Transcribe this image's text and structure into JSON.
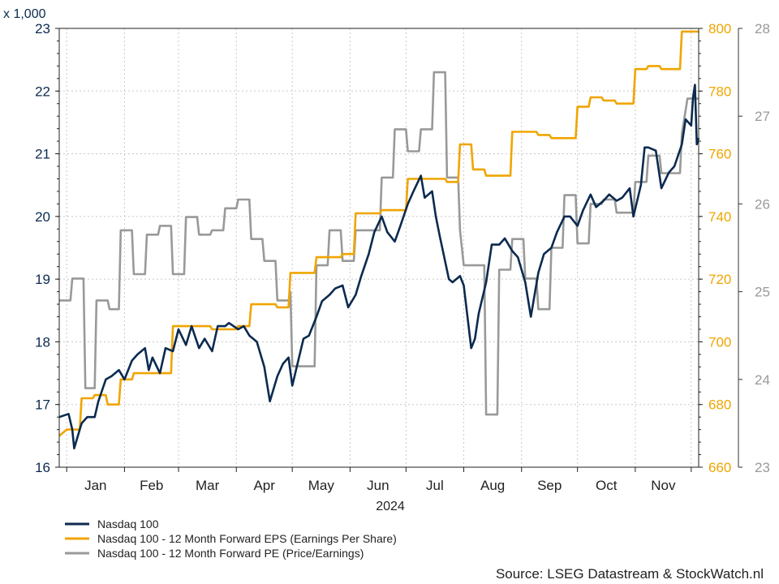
{
  "chart_data": {
    "type": "line",
    "unit_label": "x 1,000",
    "x_axis": {
      "year_label": "2024",
      "months": [
        "Jan",
        "Feb",
        "Mar",
        "Apr",
        "May",
        "Jun",
        "Jul",
        "Aug",
        "Sep",
        "Oct",
        "Nov"
      ],
      "range": [
        "2023-12-28",
        "2024-12-05"
      ]
    },
    "axes": {
      "left": {
        "min": 16,
        "max": 23,
        "step": 1,
        "color": "#0b2a4f",
        "series": "Nasdaq 100"
      },
      "right1": {
        "min": 660,
        "max": 800,
        "step": 20,
        "color": "#f0a500",
        "series": "Nasdaq 100 - 12 Month Forward EPS (Earnings Per Share)"
      },
      "right2": {
        "min": 23,
        "max": 28,
        "step": 1,
        "color": "#999999",
        "series": "Nasdaq 100 - 12 Month Forward PE (Price/Earnings)"
      }
    },
    "grid": true,
    "legend_position": "bottom-left",
    "source": "Source: LSEG Datastream & StockWatch.nl",
    "series": [
      {
        "name": "Nasdaq 100",
        "axis": "left",
        "color": "#0b2a4f",
        "points": [
          [
            "2023-12-28",
            16.8
          ],
          [
            "2024-01-02",
            16.85
          ],
          [
            "2024-01-04",
            16.6
          ],
          [
            "2024-01-05",
            16.3
          ],
          [
            "2024-01-09",
            16.7
          ],
          [
            "2024-01-12",
            16.8
          ],
          [
            "2024-01-16",
            16.8
          ],
          [
            "2024-01-18",
            17.05
          ],
          [
            "2024-01-22",
            17.4
          ],
          [
            "2024-01-25",
            17.45
          ],
          [
            "2024-01-29",
            17.55
          ],
          [
            "2024-02-01",
            17.4
          ],
          [
            "2024-02-05",
            17.7
          ],
          [
            "2024-02-08",
            17.8
          ],
          [
            "2024-02-12",
            17.9
          ],
          [
            "2024-02-14",
            17.55
          ],
          [
            "2024-02-16",
            17.75
          ],
          [
            "2024-02-20",
            17.5
          ],
          [
            "2024-02-23",
            17.9
          ],
          [
            "2024-02-27",
            17.85
          ],
          [
            "2024-03-01",
            18.2
          ],
          [
            "2024-03-05",
            17.95
          ],
          [
            "2024-03-08",
            18.25
          ],
          [
            "2024-03-12",
            17.9
          ],
          [
            "2024-03-15",
            18.05
          ],
          [
            "2024-03-19",
            17.85
          ],
          [
            "2024-03-22",
            18.25
          ],
          [
            "2024-03-26",
            18.25
          ],
          [
            "2024-03-28",
            18.3
          ],
          [
            "2024-04-02",
            18.2
          ],
          [
            "2024-04-05",
            18.25
          ],
          [
            "2024-04-08",
            18.1
          ],
          [
            "2024-04-12",
            18.0
          ],
          [
            "2024-04-16",
            17.6
          ],
          [
            "2024-04-19",
            17.05
          ],
          [
            "2024-04-23",
            17.45
          ],
          [
            "2024-04-26",
            17.65
          ],
          [
            "2024-04-29",
            17.75
          ],
          [
            "2024-05-01",
            17.3
          ],
          [
            "2024-05-03",
            17.55
          ],
          [
            "2024-05-07",
            18.05
          ],
          [
            "2024-05-10",
            18.1
          ],
          [
            "2024-05-14",
            18.4
          ],
          [
            "2024-05-17",
            18.65
          ],
          [
            "2024-05-21",
            18.75
          ],
          [
            "2024-05-24",
            18.85
          ],
          [
            "2024-05-28",
            18.9
          ],
          [
            "2024-05-31",
            18.55
          ],
          [
            "2024-06-04",
            18.75
          ],
          [
            "2024-06-07",
            19.05
          ],
          [
            "2024-06-11",
            19.4
          ],
          [
            "2024-06-14",
            19.75
          ],
          [
            "2024-06-18",
            20.0
          ],
          [
            "2024-06-21",
            19.75
          ],
          [
            "2024-06-25",
            19.6
          ],
          [
            "2024-06-28",
            19.85
          ],
          [
            "2024-07-02",
            20.2
          ],
          [
            "2024-07-05",
            20.4
          ],
          [
            "2024-07-09",
            20.65
          ],
          [
            "2024-07-11",
            20.3
          ],
          [
            "2024-07-15",
            20.4
          ],
          [
            "2024-07-17",
            20.0
          ],
          [
            "2024-07-19",
            19.7
          ],
          [
            "2024-07-24",
            19.0
          ],
          [
            "2024-07-26",
            18.95
          ],
          [
            "2024-07-30",
            19.05
          ],
          [
            "2024-08-01",
            18.9
          ],
          [
            "2024-08-05",
            17.9
          ],
          [
            "2024-08-07",
            18.05
          ],
          [
            "2024-08-09",
            18.45
          ],
          [
            "2024-08-13",
            18.95
          ],
          [
            "2024-08-16",
            19.55
          ],
          [
            "2024-08-20",
            19.55
          ],
          [
            "2024-08-23",
            19.65
          ],
          [
            "2024-08-27",
            19.45
          ],
          [
            "2024-08-30",
            19.35
          ],
          [
            "2024-09-03",
            18.95
          ],
          [
            "2024-09-06",
            18.4
          ],
          [
            "2024-09-10",
            19.1
          ],
          [
            "2024-09-13",
            19.4
          ],
          [
            "2024-09-17",
            19.5
          ],
          [
            "2024-09-20",
            19.75
          ],
          [
            "2024-09-24",
            20.0
          ],
          [
            "2024-09-27",
            20.0
          ],
          [
            "2024-10-01",
            19.85
          ],
          [
            "2024-10-04",
            20.1
          ],
          [
            "2024-10-08",
            20.35
          ],
          [
            "2024-10-11",
            20.15
          ],
          [
            "2024-10-15",
            20.25
          ],
          [
            "2024-10-18",
            20.35
          ],
          [
            "2024-10-22",
            20.25
          ],
          [
            "2024-10-25",
            20.3
          ],
          [
            "2024-10-29",
            20.45
          ],
          [
            "2024-10-31",
            20.0
          ],
          [
            "2024-11-04",
            20.5
          ],
          [
            "2024-11-06",
            21.1
          ],
          [
            "2024-11-08",
            21.1
          ],
          [
            "2024-11-12",
            21.05
          ],
          [
            "2024-11-15",
            20.45
          ],
          [
            "2024-11-19",
            20.7
          ],
          [
            "2024-11-22",
            20.8
          ],
          [
            "2024-11-26",
            21.15
          ],
          [
            "2024-11-28",
            21.55
          ],
          [
            "2024-12-01",
            21.45
          ],
          [
            "2024-12-02",
            21.9
          ],
          [
            "2024-12-03",
            22.1
          ],
          [
            "2024-12-04",
            21.15
          ],
          [
            "2024-12-05",
            21.25
          ]
        ]
      },
      {
        "name": "Nasdaq 100 - 12 Month Forward EPS (Earnings Per Share)",
        "axis": "right1",
        "color": "#f0a500",
        "points": [
          [
            "2023-12-28",
            670
          ],
          [
            "2024-01-01",
            672
          ],
          [
            "2024-01-08",
            672
          ],
          [
            "2024-01-09",
            682
          ],
          [
            "2024-01-15",
            682
          ],
          [
            "2024-01-16",
            683
          ],
          [
            "2024-01-22",
            683
          ],
          [
            "2024-01-23",
            680
          ],
          [
            "2024-01-29",
            680
          ],
          [
            "2024-01-30",
            688
          ],
          [
            "2024-02-05",
            688
          ],
          [
            "2024-02-06",
            690
          ],
          [
            "2024-02-26",
            690
          ],
          [
            "2024-02-27",
            705
          ],
          [
            "2024-03-18",
            705
          ],
          [
            "2024-03-19",
            704
          ],
          [
            "2024-04-01",
            704
          ],
          [
            "2024-04-02",
            705
          ],
          [
            "2024-04-08",
            705
          ],
          [
            "2024-04-09",
            712
          ],
          [
            "2024-04-22",
            712
          ],
          [
            "2024-04-23",
            711
          ],
          [
            "2024-04-29",
            711
          ],
          [
            "2024-04-30",
            722
          ],
          [
            "2024-05-13",
            722
          ],
          [
            "2024-05-14",
            727
          ],
          [
            "2024-05-27",
            727
          ],
          [
            "2024-05-28",
            728
          ],
          [
            "2024-06-03",
            728
          ],
          [
            "2024-06-04",
            741
          ],
          [
            "2024-06-17",
            741
          ],
          [
            "2024-06-18",
            742
          ],
          [
            "2024-07-01",
            742
          ],
          [
            "2024-07-02",
            752
          ],
          [
            "2024-07-22",
            752
          ],
          [
            "2024-07-23",
            751
          ],
          [
            "2024-07-29",
            751
          ],
          [
            "2024-07-30",
            763
          ],
          [
            "2024-08-05",
            763
          ],
          [
            "2024-08-06",
            755
          ],
          [
            "2024-08-12",
            755
          ],
          [
            "2024-08-13",
            753
          ],
          [
            "2024-08-26",
            753
          ],
          [
            "2024-08-27",
            767
          ],
          [
            "2024-09-09",
            767
          ],
          [
            "2024-09-10",
            766
          ],
          [
            "2024-09-16",
            766
          ],
          [
            "2024-09-17",
            765
          ],
          [
            "2024-09-30",
            765
          ],
          [
            "2024-10-01",
            775
          ],
          [
            "2024-10-07",
            775
          ],
          [
            "2024-10-08",
            778
          ],
          [
            "2024-10-14",
            778
          ],
          [
            "2024-10-15",
            777
          ],
          [
            "2024-10-21",
            777
          ],
          [
            "2024-10-22",
            776
          ],
          [
            "2024-10-31",
            776
          ],
          [
            "2024-11-01",
            787
          ],
          [
            "2024-11-07",
            787
          ],
          [
            "2024-11-08",
            788
          ],
          [
            "2024-11-14",
            788
          ],
          [
            "2024-11-15",
            787
          ],
          [
            "2024-11-25",
            787
          ],
          [
            "2024-11-26",
            799
          ],
          [
            "2024-12-05",
            799
          ]
        ]
      },
      {
        "name": "Nasdaq 100 - 12 Month Forward PE (Price/Earnings)",
        "axis": "right2",
        "color": "#999999",
        "points": [
          [
            "2023-12-28",
            24.9
          ],
          [
            "2024-01-03",
            24.9
          ],
          [
            "2024-01-04",
            25.15
          ],
          [
            "2024-01-10",
            25.15
          ],
          [
            "2024-01-11",
            23.9
          ],
          [
            "2024-01-16",
            23.9
          ],
          [
            "2024-01-17",
            24.9
          ],
          [
            "2024-01-23",
            24.9
          ],
          [
            "2024-01-24",
            24.8
          ],
          [
            "2024-01-29",
            24.8
          ],
          [
            "2024-01-30",
            25.7
          ],
          [
            "2024-02-05",
            25.7
          ],
          [
            "2024-02-06",
            25.2
          ],
          [
            "2024-02-12",
            25.2
          ],
          [
            "2024-02-13",
            25.65
          ],
          [
            "2024-02-19",
            25.65
          ],
          [
            "2024-02-20",
            25.75
          ],
          [
            "2024-02-26",
            25.75
          ],
          [
            "2024-02-27",
            25.2
          ],
          [
            "2024-03-04",
            25.2
          ],
          [
            "2024-03-05",
            25.85
          ],
          [
            "2024-03-11",
            25.85
          ],
          [
            "2024-03-12",
            25.65
          ],
          [
            "2024-03-18",
            25.65
          ],
          [
            "2024-03-19",
            25.7
          ],
          [
            "2024-03-25",
            25.7
          ],
          [
            "2024-03-26",
            25.95
          ],
          [
            "2024-04-01",
            25.95
          ],
          [
            "2024-04-02",
            26.05
          ],
          [
            "2024-04-08",
            26.05
          ],
          [
            "2024-04-09",
            25.6
          ],
          [
            "2024-04-15",
            25.6
          ],
          [
            "2024-04-16",
            25.35
          ],
          [
            "2024-04-22",
            25.35
          ],
          [
            "2024-04-23",
            24.9
          ],
          [
            "2024-04-29",
            24.9
          ],
          [
            "2024-04-30",
            25.0
          ],
          [
            "2024-05-01",
            24.15
          ],
          [
            "2024-05-13",
            24.15
          ],
          [
            "2024-05-14",
            25.3
          ],
          [
            "2024-05-20",
            25.3
          ],
          [
            "2024-05-21",
            25.7
          ],
          [
            "2024-05-27",
            25.7
          ],
          [
            "2024-05-28",
            25.35
          ],
          [
            "2024-06-03",
            25.35
          ],
          [
            "2024-06-04",
            25.7
          ],
          [
            "2024-06-17",
            25.7
          ],
          [
            "2024-06-18",
            26.3
          ],
          [
            "2024-06-24",
            26.3
          ],
          [
            "2024-06-25",
            26.85
          ],
          [
            "2024-07-01",
            26.85
          ],
          [
            "2024-07-02",
            26.6
          ],
          [
            "2024-07-08",
            26.6
          ],
          [
            "2024-07-09",
            26.85
          ],
          [
            "2024-07-15",
            26.85
          ],
          [
            "2024-07-16",
            27.5
          ],
          [
            "2024-07-22",
            27.5
          ],
          [
            "2024-07-23",
            26.3
          ],
          [
            "2024-07-29",
            26.3
          ],
          [
            "2024-07-30",
            25.7
          ],
          [
            "2024-08-01",
            25.3
          ],
          [
            "2024-08-12",
            25.3
          ],
          [
            "2024-08-13",
            23.6
          ],
          [
            "2024-08-19",
            23.6
          ],
          [
            "2024-08-20",
            25.25
          ],
          [
            "2024-08-26",
            25.25
          ],
          [
            "2024-08-27",
            25.6
          ],
          [
            "2024-09-02",
            25.6
          ],
          [
            "2024-09-03",
            25.15
          ],
          [
            "2024-09-09",
            25.15
          ],
          [
            "2024-09-10",
            24.8
          ],
          [
            "2024-09-16",
            24.8
          ],
          [
            "2024-09-17",
            25.5
          ],
          [
            "2024-09-23",
            25.5
          ],
          [
            "2024-09-24",
            26.1
          ],
          [
            "2024-09-30",
            26.1
          ],
          [
            "2024-10-01",
            25.55
          ],
          [
            "2024-10-07",
            25.55
          ],
          [
            "2024-10-08",
            26.0
          ],
          [
            "2024-10-14",
            26.0
          ],
          [
            "2024-10-15",
            26.05
          ],
          [
            "2024-10-21",
            26.05
          ],
          [
            "2024-10-22",
            25.9
          ],
          [
            "2024-10-31",
            25.9
          ],
          [
            "2024-11-01",
            26.25
          ],
          [
            "2024-11-07",
            26.25
          ],
          [
            "2024-11-08",
            26.55
          ],
          [
            "2024-11-14",
            26.55
          ],
          [
            "2024-11-15",
            26.35
          ],
          [
            "2024-11-25",
            26.35
          ],
          [
            "2024-11-26",
            26.8
          ],
          [
            "2024-11-29",
            27.2
          ],
          [
            "2024-12-05",
            27.2
          ]
        ]
      }
    ]
  }
}
